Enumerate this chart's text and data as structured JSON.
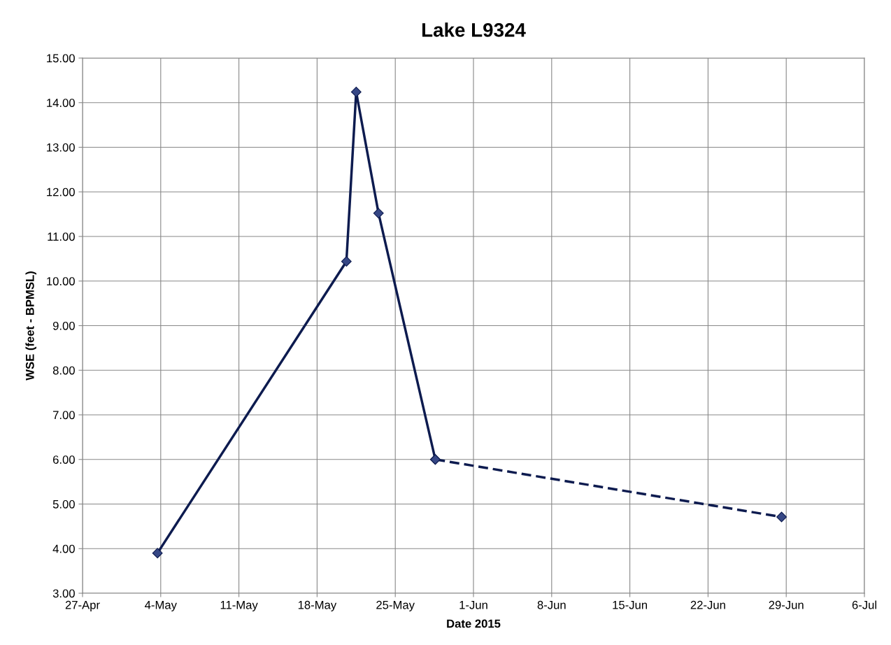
{
  "chart_data": {
    "type": "line",
    "title": "Lake L9324",
    "xlabel": "Date 2015",
    "ylabel": "WSE (feet - BPMSL)",
    "series": [
      {
        "color": "#0d1b4f",
        "line_style": "solid",
        "x": [
          "2015-05-03T17:00",
          "2015-05-20T15:00",
          "2015-05-21T12:00",
          "2015-05-23T12:00",
          "2015-05-28T14:00"
        ],
        "values": [
          3.9,
          10.44,
          14.24,
          11.52,
          6.0
        ]
      },
      {
        "color": "#0d1b4f",
        "line_style": "dashed",
        "x": [
          "2015-05-28T14:00",
          "2015-06-28T14:00"
        ],
        "values": [
          6.0,
          4.71
        ]
      }
    ],
    "marker": "diamond",
    "grid": true,
    "legend": false,
    "xlim": [
      "2015-04-27",
      "2015-07-06"
    ],
    "xticks": [
      {
        "value": "2015-04-27",
        "label": "27-Apr"
      },
      {
        "value": "2015-05-04",
        "label": "4-May"
      },
      {
        "value": "2015-05-11",
        "label": "11-May"
      },
      {
        "value": "2015-05-18",
        "label": "18-May"
      },
      {
        "value": "2015-05-25",
        "label": "25-May"
      },
      {
        "value": "2015-06-01",
        "label": "1-Jun"
      },
      {
        "value": "2015-06-08",
        "label": "8-Jun"
      },
      {
        "value": "2015-06-15",
        "label": "15-Jun"
      },
      {
        "value": "2015-06-22",
        "label": "22-Jun"
      },
      {
        "value": "2015-06-29",
        "label": "29-Jun"
      },
      {
        "value": "2015-07-06",
        "label": "6-Jul"
      }
    ],
    "ylim": [
      3,
      15
    ],
    "yticks": [
      {
        "value": 3,
        "label": "3.00"
      },
      {
        "value": 4,
        "label": "4.00"
      },
      {
        "value": 5,
        "label": "5.00"
      },
      {
        "value": 6,
        "label": "6.00"
      },
      {
        "value": 7,
        "label": "7.00"
      },
      {
        "value": 8,
        "label": "8.00"
      },
      {
        "value": 9,
        "label": "9.00"
      },
      {
        "value": 10,
        "label": "10.00"
      },
      {
        "value": 11,
        "label": "11.00"
      },
      {
        "value": 12,
        "label": "12.00"
      },
      {
        "value": 13,
        "label": "13.00"
      },
      {
        "value": 14,
        "label": "14.00"
      },
      {
        "value": 15,
        "label": "15.00"
      }
    ]
  }
}
